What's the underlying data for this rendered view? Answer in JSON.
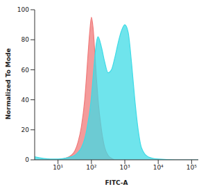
{
  "chart_data": {
    "type": "area",
    "log": "x",
    "x_label": "FITC-A",
    "y_label": "Normalized To Mode",
    "x": [
      2,
      6,
      10,
      16,
      25,
      32,
      40,
      50,
      63,
      71,
      79,
      89,
      100,
      112,
      126,
      141,
      158,
      200,
      251,
      316,
      398,
      501,
      631,
      794,
      1000,
      1259,
      1585,
      1995,
      2512,
      3162,
      5012,
      10000,
      31623,
      100000,
      158489
    ],
    "series": [
      {
        "color": "#f07a7a",
        "values": [
          0,
          0,
          0,
          1,
          3,
          6,
          12,
          22,
          40,
          55,
          70,
          85,
          95,
          88,
          72,
          55,
          40,
          20,
          8,
          3,
          1,
          0,
          0,
          0,
          0,
          0,
          0,
          0,
          0,
          0,
          0,
          0,
          0,
          0,
          0
        ]
      },
      {
        "color": "#3fdbe6",
        "values": [
          2,
          0.5,
          0.5,
          1,
          2,
          3,
          5,
          8,
          14,
          19,
          25,
          32,
          42,
          55,
          68,
          78,
          82,
          75,
          65,
          58,
          60,
          68,
          78,
          86,
          90,
          85,
          65,
          40,
          20,
          8,
          2,
          0.5,
          0,
          0,
          0
        ]
      }
    ],
    "xlim": [
      2,
      158489
    ],
    "xticks": [
      {
        "value": 10,
        "label": "10¹"
      },
      {
        "value": 100,
        "label": "10²"
      },
      {
        "value": 1000,
        "label": "10³"
      },
      {
        "value": 10000,
        "label": "10⁴"
      },
      {
        "value": 100000,
        "label": "10⁵"
      }
    ],
    "ylim": [
      0,
      100
    ],
    "yticks": [
      0,
      20,
      40,
      60,
      80,
      100
    ]
  }
}
